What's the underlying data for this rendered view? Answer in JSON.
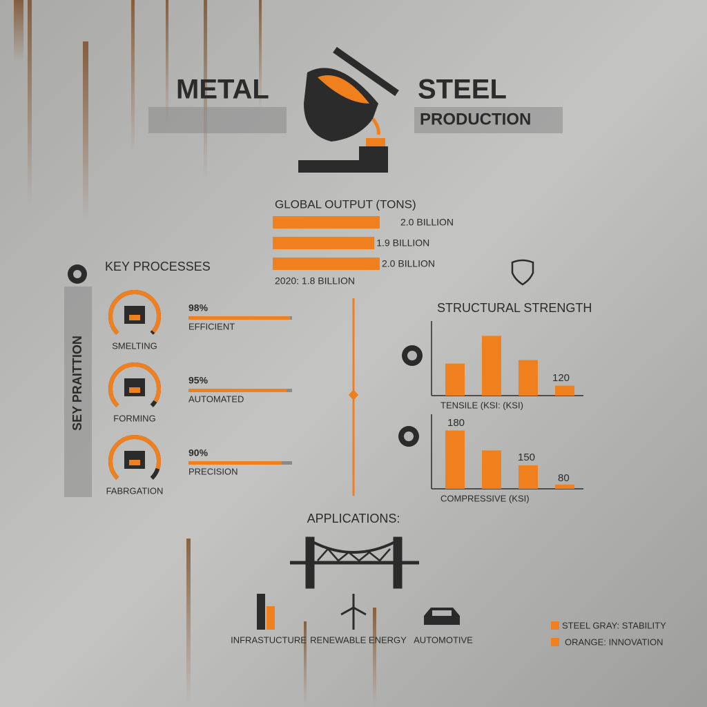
{
  "header": {
    "title_left": "METAL",
    "title_right": "STEEL",
    "subtitle": "PRODUCTION"
  },
  "output": {
    "title": "GLOBAL OUTPUT (TONS)",
    "xlim": [
      0,
      2
    ],
    "color": "#f07f1e",
    "bars": [
      {
        "value": 2.0,
        "label": "2.0 BILLION"
      },
      {
        "value": 1.9,
        "label": "1.9 BILLION"
      },
      {
        "value": 2.0,
        "label": "2.0 BILLION"
      }
    ],
    "note": "2020: 1.8 BILLION"
  },
  "processes": {
    "title": "KEY PROCESSES",
    "side_label": "SEY PRAITTION",
    "color": "#f07f1e",
    "items": [
      {
        "name": "SMELTING",
        "value": 98,
        "value_label": "98%",
        "label": "EFFICIENT"
      },
      {
        "name": "FORMING",
        "value": 95,
        "value_label": "95%",
        "label": "AUTOMATED"
      },
      {
        "name": "FABRGATION",
        "value": 90,
        "value_label": "90%",
        "label": "PRECISION"
      }
    ]
  },
  "strength": {
    "title": "STRUCTURAL STRENGTH",
    "color": "#f07f1e",
    "ylim": [
      0,
      100
    ],
    "charts": [
      {
        "xlabel": "TENSILE (KSI: (KSI)",
        "values": [
          45,
          84,
          50,
          14
        ],
        "annotations": [
          "120"
        ]
      },
      {
        "xlabel": "COMPRESSIVE (KSI)",
        "values": [
          82,
          54,
          33,
          6
        ],
        "annotations": [
          "180",
          "150",
          "80"
        ]
      }
    ]
  },
  "applications": {
    "title": "APPLICATIONS:",
    "items": [
      "INFRASTUCTURE",
      "RENEWABLE ENERGY",
      "AUTOMOTIVE"
    ]
  },
  "legend": [
    {
      "label": "STEEL GRAY: STABILITY",
      "color": "#f07f1e"
    },
    {
      "label": "ORANGE: INNOVATION",
      "color": "#f07f1e"
    }
  ]
}
